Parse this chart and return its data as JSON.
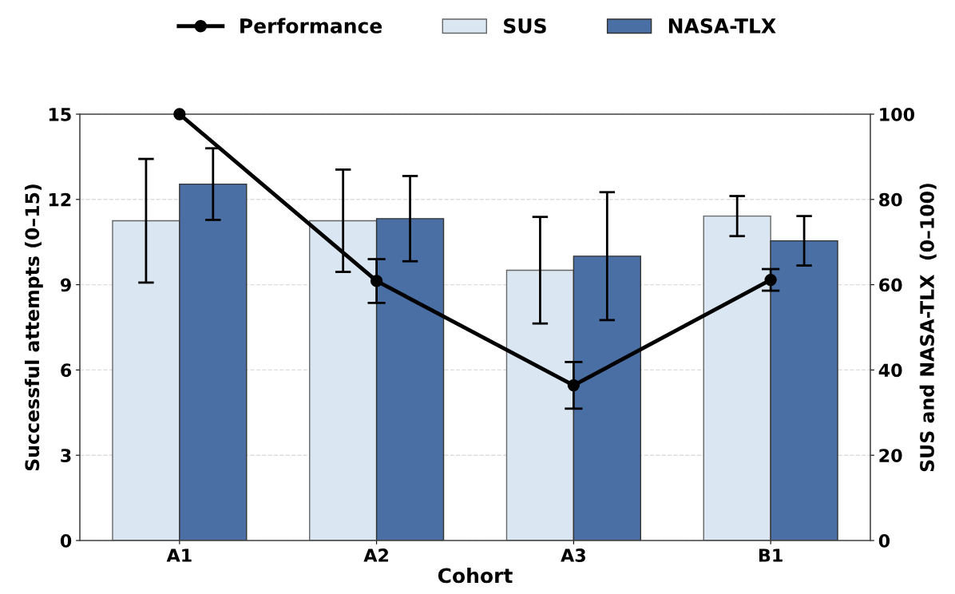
{
  "chart_data": {
    "type": "bar",
    "xlabel": "Cohort",
    "ylabel": "Successful attempts (0–15)",
    "y2label": "SUS and NASA-TLX  (0–100)",
    "categories": [
      "A1",
      "A2",
      "A3",
      "B1"
    ],
    "series": [
      {
        "name": "Performance",
        "type": "line",
        "color": "#000000",
        "values": [
          15,
          9.13,
          5.46,
          9.17
        ],
        "errors": [
          null,
          0.77,
          0.82,
          0.38
        ]
      },
      {
        "name": "SUS",
        "axis": "y2",
        "color": "#dae7f3",
        "values": [
          75.0,
          75.0,
          63.4,
          76.1
        ],
        "errors": [
          14.5,
          12,
          12.5,
          4.7
        ]
      },
      {
        "name": "NASA-TLX",
        "axis": "y2",
        "color": "#4a6fa5",
        "values": [
          83.6,
          75.5,
          66.7,
          70.3
        ],
        "errors": [
          8.4,
          10,
          15,
          5.8
        ]
      }
    ],
    "ylim": [
      0,
      15
    ],
    "yticks": [
      0,
      3,
      6,
      9,
      12,
      15
    ],
    "y2lim": [
      0,
      100
    ],
    "y2ticks": [
      0,
      20,
      40,
      60,
      80,
      100
    ],
    "grid": "y",
    "legend": "top",
    "marker": "circle",
    "line_style": "solid"
  }
}
